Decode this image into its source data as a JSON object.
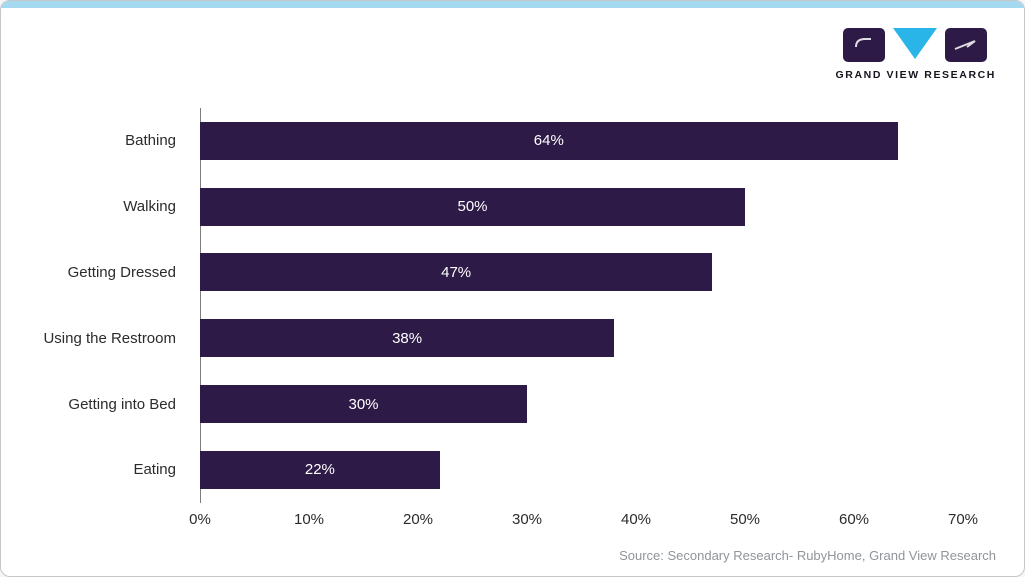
{
  "page": {
    "top_strip_color": "#a4d9f0",
    "card_background": "#ffffff"
  },
  "brand": {
    "name": "GRAND VIEW RESEARCH",
    "logo_purple": "#2e1a47",
    "logo_cyan": "#29b5e8"
  },
  "chart_data": {
    "type": "bar",
    "orientation": "horizontal",
    "title": "",
    "xlabel": "",
    "ylabel": "",
    "categories": [
      "Bathing",
      "Walking",
      "Getting Dressed",
      "Using the Restroom",
      "Getting into Bed",
      "Eating"
    ],
    "values": [
      64,
      50,
      47,
      38,
      30,
      22
    ],
    "value_labels": [
      "64%",
      "50%",
      "47%",
      "38%",
      "30%",
      "22%"
    ],
    "xlim": [
      0,
      70
    ],
    "x_ticks": [
      "0%",
      "10%",
      "20%",
      "30%",
      "40%",
      "50%",
      "60%",
      "70%"
    ],
    "bar_color": "#2e1a47",
    "grid": false,
    "legend": "none"
  },
  "footer": {
    "source": "Source: Secondary Research- RubyHome, Grand View Research"
  }
}
